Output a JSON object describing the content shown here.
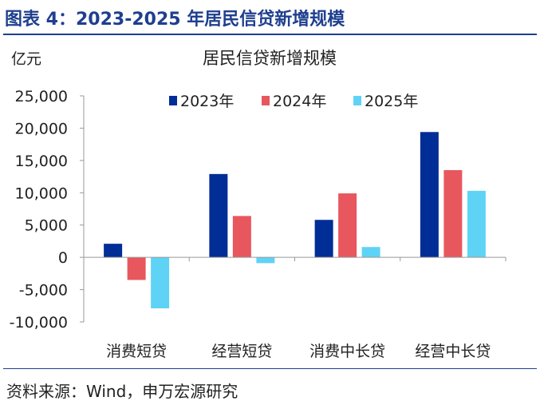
{
  "header": {
    "title": "图表 4：2023-2025 年居民信贷新增规模"
  },
  "footer": {
    "source": "资料来源：Wind，申万宏源研究"
  },
  "chart_data": {
    "type": "bar",
    "title": "居民信贷新增规模",
    "unit_label": "亿元",
    "categories": [
      "消费短贷",
      "经营短贷",
      "消费中长贷",
      "经营中长贷"
    ],
    "series": [
      {
        "name": "2023年",
        "color": "#002d96",
        "values": [
          2100,
          12900,
          5800,
          19400
        ]
      },
      {
        "name": "2024年",
        "color": "#e8575e",
        "values": [
          -3500,
          6400,
          9900,
          13500
        ]
      },
      {
        "name": "2025年",
        "color": "#5fd3f6",
        "values": [
          -7900,
          -900,
          1600,
          10300
        ]
      }
    ],
    "ylim": [
      -10000,
      25000
    ],
    "yticks": [
      {
        "value": 25000,
        "label": "25,000"
      },
      {
        "value": 20000,
        "label": "20,000"
      },
      {
        "value": 15000,
        "label": "15,000"
      },
      {
        "value": 10000,
        "label": "10,000"
      },
      {
        "value": 5000,
        "label": "5,000"
      },
      {
        "value": 0,
        "label": "0"
      },
      {
        "value": -5000,
        "label": "-5,000"
      },
      {
        "value": -10000,
        "label": "-10,000"
      }
    ],
    "legend_position": "top",
    "grid": false
  }
}
